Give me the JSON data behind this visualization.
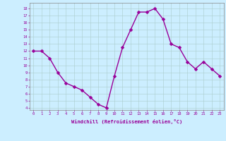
{
  "x": [
    0,
    1,
    2,
    3,
    4,
    5,
    6,
    7,
    8,
    9,
    10,
    11,
    12,
    13,
    14,
    15,
    16,
    17,
    18,
    19,
    20,
    21,
    22,
    23
  ],
  "y": [
    12,
    12,
    11,
    9,
    7.5,
    7,
    6.5,
    5.5,
    4.5,
    4,
    8.5,
    12.5,
    15,
    17.5,
    17.5,
    18,
    16.5,
    13,
    12.5,
    10.5,
    9.5,
    10.5,
    9.5,
    8.5
  ],
  "line_color": "#990099",
  "marker_color": "#990099",
  "bg_color": "#cceeff",
  "grid_color": "#aacccc",
  "xlabel": "Windchill (Refroidissement éolien,°C)",
  "ylabel_ticks": [
    4,
    5,
    6,
    7,
    8,
    9,
    10,
    11,
    12,
    13,
    14,
    15,
    16,
    17,
    18
  ],
  "xtick_labels": [
    "0",
    "1",
    "2",
    "3",
    "4",
    "5",
    "6",
    "7",
    "8",
    "9",
    "10",
    "11",
    "12",
    "13",
    "14",
    "15",
    "16",
    "17",
    "18",
    "19",
    "20",
    "21",
    "22",
    "23"
  ],
  "ylim": [
    3.7,
    18.8
  ],
  "xlim": [
    -0.5,
    23.5
  ],
  "tick_color": "#990099",
  "label_color": "#990099",
  "font": "monospace",
  "linewidth": 1.0,
  "markersize": 2.5
}
